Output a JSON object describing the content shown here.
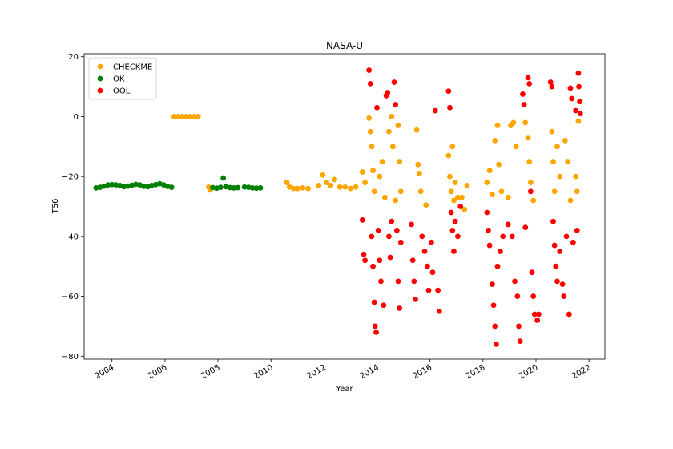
{
  "chart_data": {
    "type": "scatter",
    "title": "NASA-U",
    "xlabel": "Year",
    "ylabel": "TS6",
    "x_tick_labels": [
      "2004",
      "2006",
      "2008",
      "2010",
      "2012",
      "2014",
      "2016",
      "2018",
      "2020",
      "2022"
    ],
    "x_tick_years": [
      2004,
      2006,
      2008,
      2010,
      2012,
      2014,
      2016,
      2018,
      2020,
      2022
    ],
    "xlim": [
      2002.95,
      2022.6
    ],
    "ylim": [
      -81,
      21
    ],
    "y_ticks": [
      20,
      0,
      -20,
      -40,
      -60,
      -80
    ],
    "y_tick_labels": [
      "20",
      "0",
      "−20",
      "−40",
      "−60",
      "−80"
    ],
    "legend_position": "upper-left",
    "grid": false,
    "series": [
      {
        "name": "CHECKME",
        "color": "#ffa500",
        "points": [
          [
            2006.35,
            0
          ],
          [
            2006.5,
            0
          ],
          [
            2006.65,
            0
          ],
          [
            2006.8,
            0
          ],
          [
            2006.95,
            0
          ],
          [
            2007.1,
            0
          ],
          [
            2007.25,
            0
          ],
          [
            2007.65,
            -23.5
          ],
          [
            2007.7,
            -24.5
          ],
          [
            2010.6,
            -22
          ],
          [
            2010.7,
            -23.5
          ],
          [
            2010.85,
            -24
          ],
          [
            2011.0,
            -24
          ],
          [
            2011.2,
            -23.8
          ],
          [
            2011.4,
            -24
          ],
          [
            2011.8,
            -23
          ],
          [
            2011.95,
            -19.5
          ],
          [
            2012.1,
            -22
          ],
          [
            2012.25,
            -23
          ],
          [
            2012.4,
            -21
          ],
          [
            2012.6,
            -23.5
          ],
          [
            2012.8,
            -23.5
          ],
          [
            2013.0,
            -24
          ],
          [
            2013.2,
            -23.5
          ],
          [
            2013.45,
            -18.5
          ],
          [
            2013.55,
            -22
          ],
          [
            2013.7,
            -0.5
          ],
          [
            2013.75,
            -5
          ],
          [
            2013.8,
            -10
          ],
          [
            2013.85,
            -18
          ],
          [
            2013.9,
            -25
          ],
          [
            2014.1,
            -20
          ],
          [
            2014.2,
            -15
          ],
          [
            2014.3,
            -27
          ],
          [
            2014.45,
            -5
          ],
          [
            2014.55,
            0
          ],
          [
            2014.6,
            -10
          ],
          [
            2014.7,
            -28
          ],
          [
            2014.8,
            -3
          ],
          [
            2014.85,
            -15
          ],
          [
            2014.9,
            -25
          ],
          [
            2015.5,
            -4.5
          ],
          [
            2015.55,
            -16
          ],
          [
            2015.6,
            -19
          ],
          [
            2015.65,
            -25
          ],
          [
            2015.85,
            -29.5
          ],
          [
            2016.7,
            -13
          ],
          [
            2016.75,
            -20
          ],
          [
            2016.8,
            -25
          ],
          [
            2016.85,
            -10
          ],
          [
            2016.9,
            -28
          ],
          [
            2016.95,
            -22
          ],
          [
            2017.05,
            -27
          ],
          [
            2017.2,
            -27
          ],
          [
            2017.3,
            -31
          ],
          [
            2017.4,
            -23
          ],
          [
            2018.15,
            -22
          ],
          [
            2018.25,
            -18
          ],
          [
            2018.35,
            -26
          ],
          [
            2018.45,
            -8
          ],
          [
            2018.55,
            -3
          ],
          [
            2018.6,
            -16
          ],
          [
            2018.7,
            -25
          ],
          [
            2018.95,
            -27
          ],
          [
            2019.05,
            -3
          ],
          [
            2019.15,
            -2
          ],
          [
            2019.25,
            -10
          ],
          [
            2019.6,
            -2
          ],
          [
            2019.7,
            -7
          ],
          [
            2019.75,
            -15
          ],
          [
            2019.8,
            -22
          ],
          [
            2019.9,
            -28
          ],
          [
            2020.6,
            -5
          ],
          [
            2020.65,
            -15
          ],
          [
            2020.7,
            -25
          ],
          [
            2020.8,
            -10
          ],
          [
            2020.9,
            -20
          ],
          [
            2021.1,
            -8
          ],
          [
            2021.2,
            -15
          ],
          [
            2021.3,
            -28
          ],
          [
            2021.5,
            -20
          ],
          [
            2021.55,
            -25
          ],
          [
            2021.6,
            -1.5
          ]
        ]
      },
      {
        "name": "OK",
        "color": "#008000",
        "points": [
          [
            2003.4,
            -23.8
          ],
          [
            2003.55,
            -23.6
          ],
          [
            2003.7,
            -23.2
          ],
          [
            2003.85,
            -22.8
          ],
          [
            2004.0,
            -22.7
          ],
          [
            2004.15,
            -22.8
          ],
          [
            2004.3,
            -23.0
          ],
          [
            2004.45,
            -23.4
          ],
          [
            2004.6,
            -23.2
          ],
          [
            2004.75,
            -22.9
          ],
          [
            2004.9,
            -22.6
          ],
          [
            2005.05,
            -22.8
          ],
          [
            2005.2,
            -23.3
          ],
          [
            2005.35,
            -23.4
          ],
          [
            2005.5,
            -23.0
          ],
          [
            2005.65,
            -22.7
          ],
          [
            2005.8,
            -22.4
          ],
          [
            2005.95,
            -22.8
          ],
          [
            2006.1,
            -23.3
          ],
          [
            2006.25,
            -23.6
          ],
          [
            2007.8,
            -23.7
          ],
          [
            2007.95,
            -23.9
          ],
          [
            2008.1,
            -23.6
          ],
          [
            2008.2,
            -20.5
          ],
          [
            2008.3,
            -23.4
          ],
          [
            2008.45,
            -23.7
          ],
          [
            2008.6,
            -23.8
          ],
          [
            2008.75,
            -23.7
          ],
          [
            2009.0,
            -23.5
          ],
          [
            2009.15,
            -23.6
          ],
          [
            2009.3,
            -23.8
          ],
          [
            2009.45,
            -23.9
          ],
          [
            2009.6,
            -23.8
          ]
        ]
      },
      {
        "name": "OOL",
        "color": "#ff0000",
        "points": [
          [
            2013.45,
            -34.5
          ],
          [
            2013.5,
            -46
          ],
          [
            2013.55,
            -48
          ],
          [
            2013.7,
            15.5
          ],
          [
            2013.75,
            11
          ],
          [
            2013.8,
            -40
          ],
          [
            2013.85,
            -50
          ],
          [
            2013.9,
            -62
          ],
          [
            2013.93,
            -70
          ],
          [
            2013.97,
            -72
          ],
          [
            2014.0,
            3
          ],
          [
            2014.05,
            -38
          ],
          [
            2014.1,
            -48
          ],
          [
            2014.15,
            -55
          ],
          [
            2014.25,
            -63
          ],
          [
            2014.35,
            7
          ],
          [
            2014.4,
            8
          ],
          [
            2014.45,
            -40
          ],
          [
            2014.5,
            -47
          ],
          [
            2014.55,
            -35
          ],
          [
            2014.65,
            11.5
          ],
          [
            2014.7,
            4
          ],
          [
            2014.75,
            -38
          ],
          [
            2014.8,
            -55
          ],
          [
            2014.85,
            -64
          ],
          [
            2014.9,
            -42
          ],
          [
            2015.3,
            -36
          ],
          [
            2015.35,
            -48
          ],
          [
            2015.4,
            -55
          ],
          [
            2015.45,
            -61
          ],
          [
            2015.7,
            -40
          ],
          [
            2015.8,
            -45
          ],
          [
            2015.9,
            -50
          ],
          [
            2015.95,
            -58
          ],
          [
            2016.05,
            -42
          ],
          [
            2016.1,
            -52
          ],
          [
            2016.2,
            2
          ],
          [
            2016.3,
            -58
          ],
          [
            2016.35,
            -65
          ],
          [
            2016.7,
            8.5
          ],
          [
            2016.75,
            3
          ],
          [
            2016.8,
            -32
          ],
          [
            2016.85,
            -38
          ],
          [
            2016.9,
            -45
          ],
          [
            2016.95,
            -35
          ],
          [
            2017.05,
            -40
          ],
          [
            2017.15,
            -30
          ],
          [
            2018.15,
            -32
          ],
          [
            2018.2,
            -38
          ],
          [
            2018.25,
            -43
          ],
          [
            2018.35,
            -56
          ],
          [
            2018.4,
            -63
          ],
          [
            2018.45,
            -70
          ],
          [
            2018.5,
            -76
          ],
          [
            2018.55,
            -50
          ],
          [
            2018.65,
            -45
          ],
          [
            2018.75,
            -40
          ],
          [
            2018.95,
            -36
          ],
          [
            2019.1,
            -40
          ],
          [
            2019.2,
            -55
          ],
          [
            2019.3,
            -60
          ],
          [
            2019.35,
            -70
          ],
          [
            2019.4,
            -75
          ],
          [
            2019.5,
            7.5
          ],
          [
            2019.55,
            4
          ],
          [
            2019.6,
            -37
          ],
          [
            2019.7,
            13
          ],
          [
            2019.75,
            11
          ],
          [
            2019.8,
            -25
          ],
          [
            2019.85,
            -52
          ],
          [
            2019.9,
            -60
          ],
          [
            2019.95,
            -66
          ],
          [
            2020.05,
            -68
          ],
          [
            2020.1,
            -66
          ],
          [
            2020.55,
            11.5
          ],
          [
            2020.6,
            10
          ],
          [
            2020.65,
            -35
          ],
          [
            2020.7,
            -43
          ],
          [
            2020.75,
            -50
          ],
          [
            2020.8,
            -55
          ],
          [
            2020.9,
            -45
          ],
          [
            2021.0,
            -56
          ],
          [
            2021.05,
            -60
          ],
          [
            2021.15,
            -40
          ],
          [
            2021.25,
            -66
          ],
          [
            2021.3,
            9.5
          ],
          [
            2021.35,
            6
          ],
          [
            2021.4,
            -42
          ],
          [
            2021.5,
            2
          ],
          [
            2021.55,
            -38
          ],
          [
            2021.6,
            14.5
          ],
          [
            2021.62,
            10
          ],
          [
            2021.65,
            5
          ],
          [
            2021.67,
            1
          ]
        ]
      }
    ]
  }
}
